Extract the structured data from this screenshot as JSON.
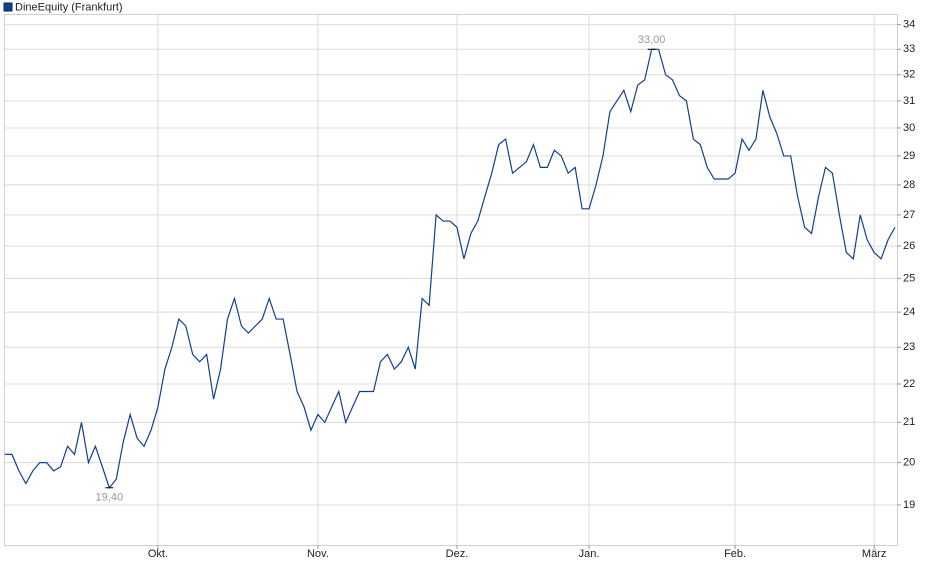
{
  "chart_data": {
    "type": "line",
    "log_scale": true,
    "grid": true,
    "legend": "top-left",
    "categories": [
      null,
      null,
      null,
      null,
      null,
      null,
      null,
      null,
      null,
      null,
      null,
      null,
      null,
      null,
      null,
      null,
      null,
      null,
      null,
      null,
      null,
      null,
      "Okt.",
      null,
      null,
      null,
      null,
      null,
      null,
      null,
      null,
      null,
      null,
      null,
      null,
      null,
      null,
      null,
      null,
      null,
      null,
      null,
      null,
      null,
      null,
      "Nov.",
      null,
      null,
      null,
      null,
      null,
      null,
      null,
      null,
      null,
      null,
      null,
      null,
      null,
      null,
      null,
      null,
      null,
      null,
      null,
      "Dez.",
      null,
      null,
      null,
      null,
      null,
      null,
      null,
      null,
      null,
      null,
      null,
      null,
      null,
      null,
      null,
      null,
      null,
      null,
      "Jan.",
      null,
      null,
      null,
      null,
      null,
      null,
      null,
      null,
      null,
      null,
      null,
      null,
      null,
      null,
      null,
      null,
      null,
      null,
      null,
      null,
      "Feb.",
      null,
      null,
      null,
      null,
      null,
      null,
      null,
      null,
      null,
      null,
      null,
      null,
      null,
      null,
      null,
      null,
      null,
      null,
      null,
      "März",
      null,
      null,
      null
    ],
    "series": [
      {
        "name": "DineEquity (Frankfurt)",
        "color": "#123f8f",
        "values": [
          20.2,
          20.2,
          19.8,
          19.5,
          19.8,
          20.0,
          20.0,
          19.8,
          19.9,
          20.4,
          20.2,
          21.0,
          20.0,
          20.4,
          19.9,
          19.4,
          19.6,
          20.5,
          21.2,
          20.6,
          20.4,
          20.8,
          21.4,
          22.4,
          23.0,
          23.8,
          23.6,
          22.8,
          22.6,
          22.8,
          21.6,
          22.4,
          23.8,
          24.4,
          23.6,
          23.4,
          23.6,
          23.8,
          24.4,
          23.8,
          23.8,
          22.8,
          21.8,
          21.4,
          20.8,
          21.2,
          21.0,
          21.4,
          21.8,
          21.0,
          21.4,
          21.8,
          21.8,
          21.8,
          22.6,
          22.8,
          22.4,
          22.6,
          23.0,
          22.4,
          24.4,
          24.2,
          27.0,
          26.8,
          26.8,
          26.6,
          25.6,
          26.4,
          26.8,
          27.6,
          28.4,
          29.4,
          29.6,
          28.4,
          28.6,
          28.8,
          29.4,
          28.6,
          28.6,
          29.2,
          29.0,
          28.4,
          28.6,
          27.2,
          27.2,
          28.0,
          29.0,
          30.6,
          31.0,
          31.4,
          30.6,
          31.6,
          31.8,
          33.0,
          33.0,
          32.0,
          31.8,
          31.2,
          31.0,
          29.6,
          29.4,
          28.6,
          28.2,
          28.2,
          28.2,
          28.4,
          29.6,
          29.2,
          29.6,
          31.4,
          30.4,
          29.8,
          29.0,
          29.0,
          27.6,
          26.6,
          26.4,
          27.6,
          28.6,
          28.4,
          27.0,
          25.8,
          25.6,
          27.0,
          26.2,
          25.8,
          25.6,
          26.2,
          26.6
        ]
      }
    ],
    "annotations": [
      {
        "label": "19,40",
        "value": 19.4
      },
      {
        "label": "33,00",
        "value": 33.0
      }
    ],
    "ylim": [
      18.1,
      34.4
    ],
    "yticks": [
      19,
      20,
      21,
      22,
      23,
      24,
      25,
      26,
      27,
      28,
      29,
      30,
      31,
      32,
      33,
      34
    ]
  }
}
